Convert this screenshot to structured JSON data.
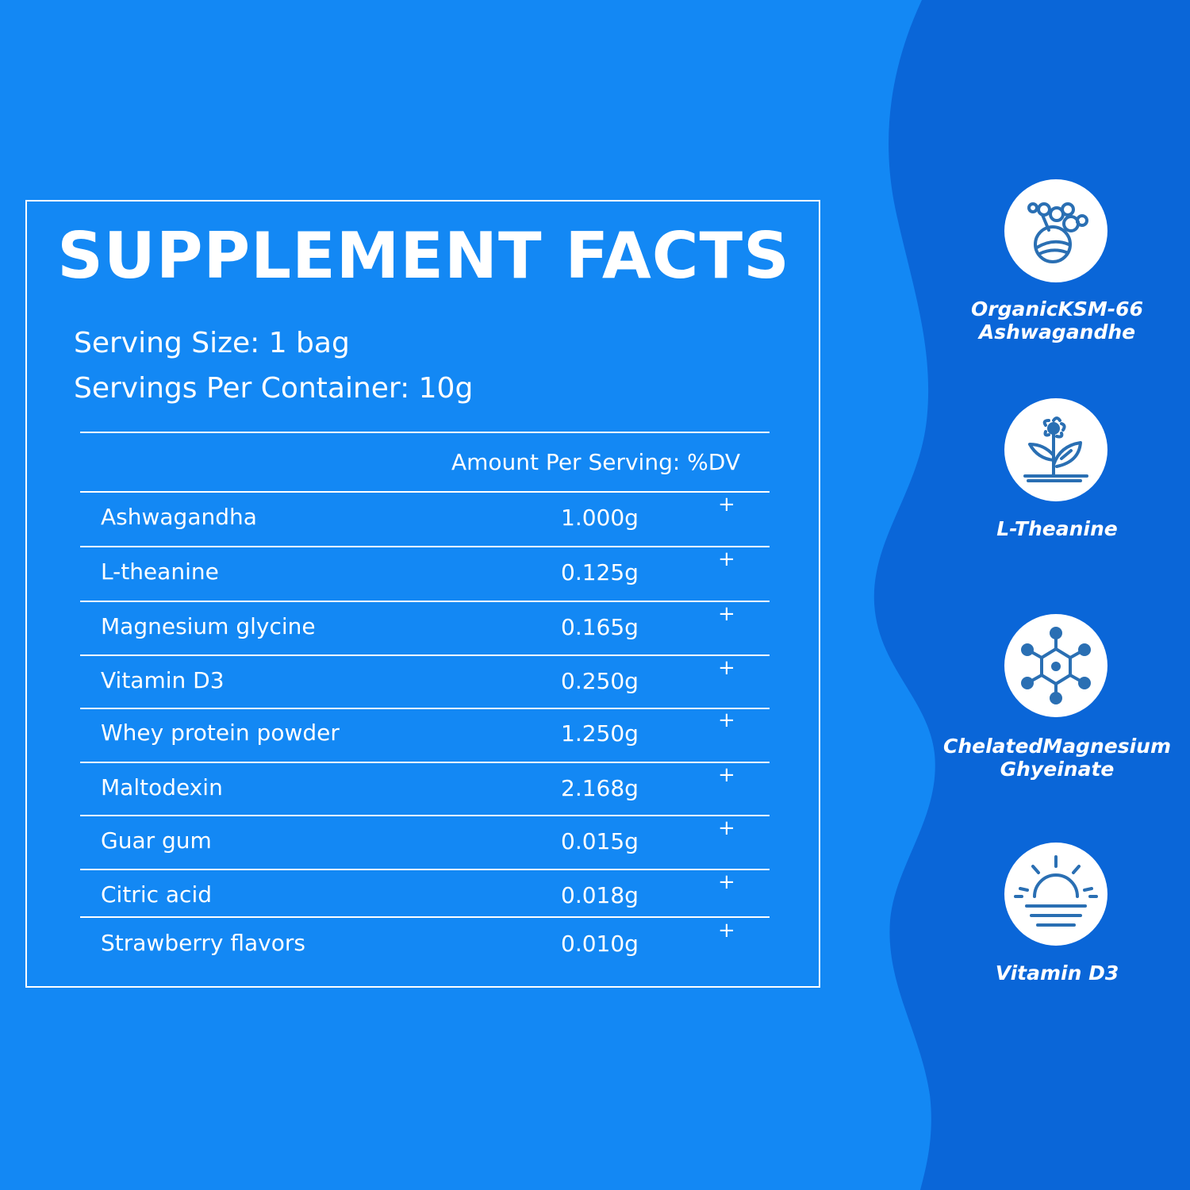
{
  "colors": {
    "background": "#1388f4",
    "wave": "#0a66d8",
    "icon_stroke": "#2a6fb3",
    "text": "#ffffff"
  },
  "facts": {
    "title": "SUPPLEMENT FACTS",
    "serving_size": "Serving Size: 1 bag",
    "servings_per_container": "Servings Per Container: 10g",
    "header_amount": "Amount Per Serving: %DV",
    "rows": [
      {
        "name": "Ashwagandha",
        "amount": "1.000g",
        "dv": "+"
      },
      {
        "name": "L-theanine",
        "amount": "0.125g",
        "dv": "+"
      },
      {
        "name": "Magnesium glycine",
        "amount": "0.165g",
        "dv": "+"
      },
      {
        "name": "Vitamin D3",
        "amount": "0.250g",
        "dv": "+"
      },
      {
        "name": "Whey protein powder",
        "amount": "1.250g",
        "dv": "+"
      },
      {
        "name": "Maltodexin",
        "amount": "2.168g",
        "dv": "+"
      },
      {
        "name": "Guar gum",
        "amount": "0.015g",
        "dv": "+"
      },
      {
        "name": "Citric acid",
        "amount": "0.018g",
        "dv": "+"
      },
      {
        "name": "Strawberry flavors",
        "amount": "0.010g",
        "dv": "+"
      }
    ]
  },
  "badges": [
    {
      "icon": "molecule-cluster-icon",
      "line1": "OrganicKSM-66",
      "line2": "Ashwagandhe"
    },
    {
      "icon": "sprout-flower-icon",
      "line1": "L-Theanine",
      "line2": ""
    },
    {
      "icon": "hexagon-molecule-icon",
      "line1": "ChelatedMagnesium",
      "line2": "Ghyeinate"
    },
    {
      "icon": "sunrise-icon",
      "line1": "Vitamin D3",
      "line2": ""
    }
  ]
}
